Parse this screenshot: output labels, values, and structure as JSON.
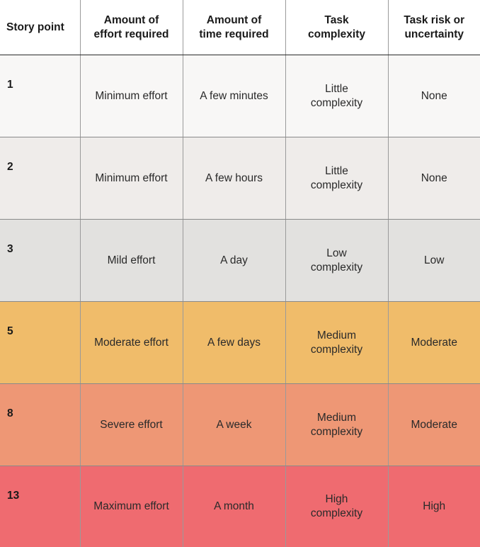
{
  "headers": {
    "story_point": "Story point",
    "effort": {
      "line1": "Amount of",
      "line2": "effort required"
    },
    "time": {
      "line1": "Amount of",
      "line2": "time required"
    },
    "complexity": {
      "line1": "Task",
      "line2": "complexity"
    },
    "risk": {
      "line1": "Task risk or",
      "line2": "uncertainty"
    }
  },
  "rows": [
    {
      "point": "1",
      "effort": "Minimum effort",
      "time": "A few minutes",
      "complexity": {
        "line1": "Little",
        "line2": "complexity"
      },
      "risk": "None",
      "color": "#f8f7f6"
    },
    {
      "point": "2",
      "effort": "Minimum effort",
      "time": "A few hours",
      "complexity": {
        "line1": "Little",
        "line2": "complexity"
      },
      "risk": "None",
      "color": "#efecea"
    },
    {
      "point": "3",
      "effort": "Mild effort",
      "time": "A day",
      "complexity": {
        "line1": "Low",
        "line2": "complexity"
      },
      "risk": "Low",
      "color": "#e2e1df"
    },
    {
      "point": "5",
      "effort": "Moderate effort",
      "time": "A few days",
      "complexity": {
        "line1": "Medium",
        "line2": "complexity"
      },
      "risk": "Moderate",
      "color": "#f0bc6a"
    },
    {
      "point": "8",
      "effort": "Severe effort",
      "time": "A week",
      "complexity": {
        "line1": "Medium",
        "line2": "complexity"
      },
      "risk": "Moderate",
      "color": "#ee9775"
    },
    {
      "point": "13",
      "effort": "Maximum effort",
      "time": "A month",
      "complexity": {
        "line1": "High",
        "line2": "complexity"
      },
      "risk": "High",
      "color": "#ef6b70"
    }
  ]
}
